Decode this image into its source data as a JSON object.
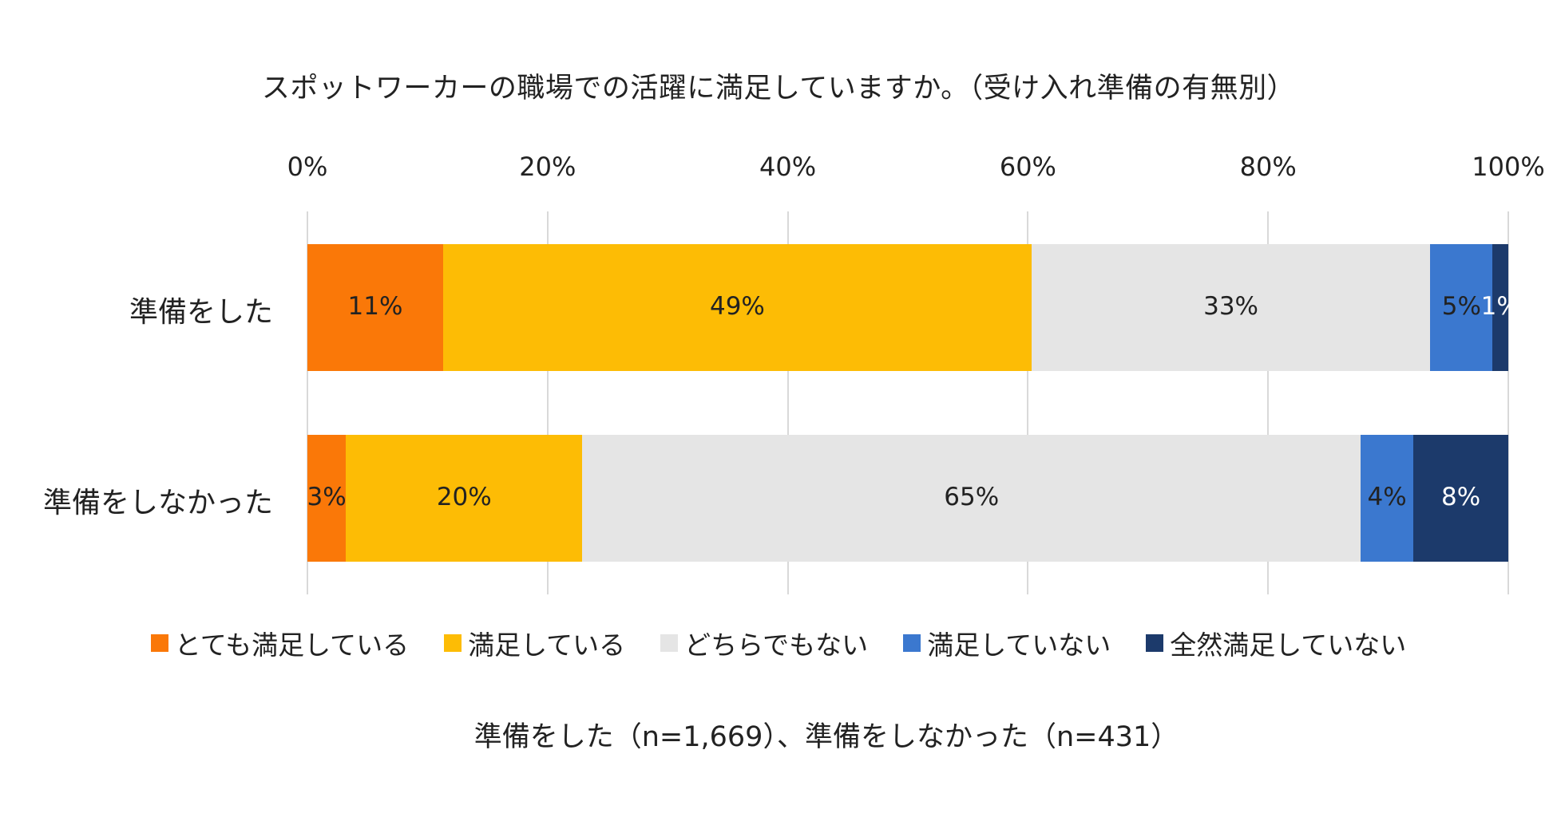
{
  "chart_data": {
    "type": "bar",
    "orientation": "horizontal",
    "stacked": "percent",
    "title": "スポットワーカーの職場での活躍に満足していますか。（受け入れ準備の有無別）",
    "categories": [
      "準備をした",
      "準備をしなかった"
    ],
    "xlim": [
      0,
      100
    ],
    "xticks": [
      "0%",
      "20%",
      "40%",
      "60%",
      "80%",
      "100%"
    ],
    "series": [
      {
        "name": "とても満足している",
        "color": "#fa7808",
        "values": [
          11.3,
          3.2
        ],
        "labels": [
          "11%",
          "3%"
        ],
        "label_color": "#222222"
      },
      {
        "name": "満足している",
        "color": "#fdbc05",
        "values": [
          49.0,
          19.7
        ],
        "labels": [
          "49%",
          "20%"
        ],
        "label_color": "#222222"
      },
      {
        "name": "どちらでもない",
        "color": "#e5e5e5",
        "values": [
          33.2,
          64.8
        ],
        "labels": [
          "33%",
          "65%"
        ],
        "label_color": "#222222"
      },
      {
        "name": "満足していない",
        "color": "#3b78cf",
        "values": [
          5.2,
          4.4
        ],
        "labels": [
          "5%",
          "4%"
        ],
        "label_color": "#222222"
      },
      {
        "name": "全然満足していない",
        "color": "#1c3a6b",
        "values": [
          1.3,
          7.9
        ],
        "labels": [
          "1%",
          "8%"
        ],
        "label_color": "#ffffff"
      }
    ],
    "legend": "bottom",
    "grid": true
  },
  "footnote": "準備をした（n=1,669）、準備をしなかった（n=431）"
}
